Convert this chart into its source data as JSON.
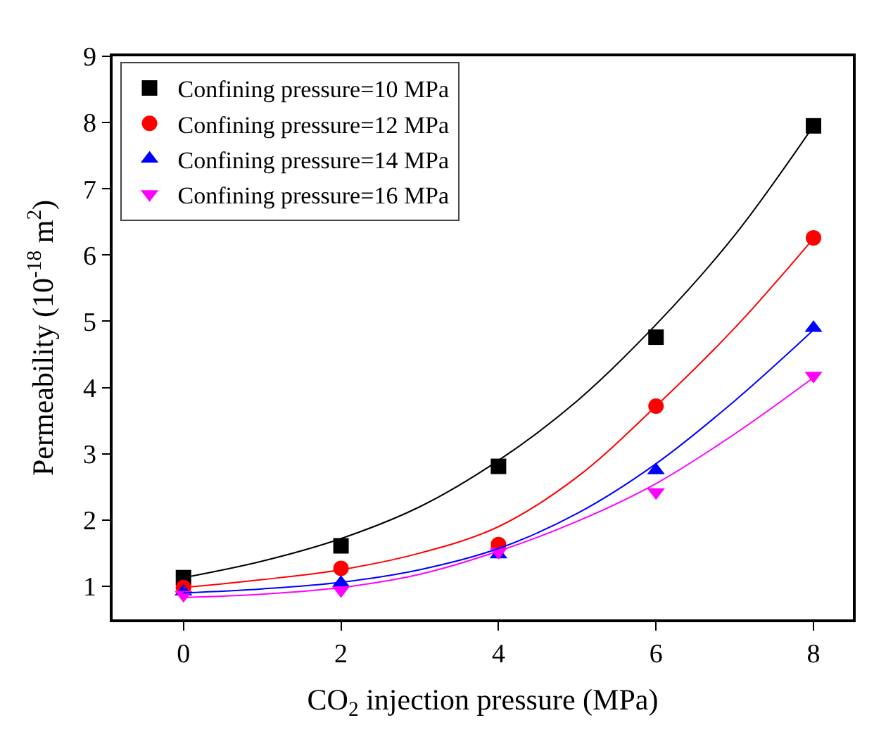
{
  "chart_data": {
    "type": "scatter",
    "xlabel": "CO$_{2}$ injection pressure (MPa)",
    "ylabel": "Permeability (10$^{-18}$ m$^{2}$)",
    "x": [
      0,
      2,
      4,
      6,
      8
    ],
    "xlim": [
      -0.9,
      8.5
    ],
    "xticks": [
      0,
      2,
      4,
      6,
      8
    ],
    "ylim": [
      0.5,
      9
    ],
    "yticks": [
      1,
      2,
      3,
      4,
      5,
      6,
      7,
      8,
      9
    ],
    "legend": "top left",
    "series": [
      {
        "name": "Confining pressure=10 MPa",
        "color": "#000000",
        "marker": "square",
        "values": [
          1.13,
          1.61,
          2.81,
          4.76,
          7.95
        ]
      },
      {
        "name": "Confining pressure=12 MPa",
        "color": "#ff0000",
        "marker": "circle",
        "values": [
          0.98,
          1.27,
          1.63,
          3.72,
          6.26
        ]
      },
      {
        "name": "Confining pressure=14 MPa",
        "color": "#0000ff",
        "marker": "triangle",
        "values": [
          0.92,
          1.05,
          1.48,
          2.75,
          4.9
        ]
      },
      {
        "name": "Confining pressure=16 MPa",
        "color": "#ff00ff",
        "marker": "triangle-down",
        "values": [
          0.87,
          0.94,
          1.52,
          2.42,
          4.18
        ]
      },
      {
        "type": "line",
        "color": "#000000",
        "marker": "none",
        "line_style": "solid",
        "x": [
          0,
          1,
          2,
          3,
          4,
          5,
          6,
          7,
          8
        ],
        "values": [
          1.13,
          1.38,
          1.72,
          2.2,
          2.9,
          3.8,
          4.95,
          6.3,
          7.95
        ]
      },
      {
        "type": "line",
        "color": "#ff0000",
        "marker": "none",
        "line_style": "solid",
        "x": [
          0,
          1,
          2,
          3,
          4,
          5,
          6,
          7,
          8
        ],
        "values": [
          0.98,
          1.1,
          1.25,
          1.5,
          1.9,
          2.65,
          3.72,
          4.9,
          6.25
        ]
      },
      {
        "type": "line",
        "color": "#0000ff",
        "marker": "none",
        "line_style": "solid",
        "x": [
          0,
          1,
          2,
          3,
          4,
          5,
          6,
          7,
          8
        ],
        "values": [
          0.9,
          0.96,
          1.06,
          1.25,
          1.57,
          2.1,
          2.85,
          3.8,
          4.87
        ]
      },
      {
        "type": "line",
        "color": "#ff00ff",
        "marker": "none",
        "line_style": "solid",
        "x": [
          0,
          1,
          2,
          3,
          4,
          5,
          6,
          7,
          8
        ],
        "values": [
          0.83,
          0.88,
          0.98,
          1.18,
          1.53,
          1.98,
          2.55,
          3.3,
          4.15
        ]
      }
    ]
  }
}
